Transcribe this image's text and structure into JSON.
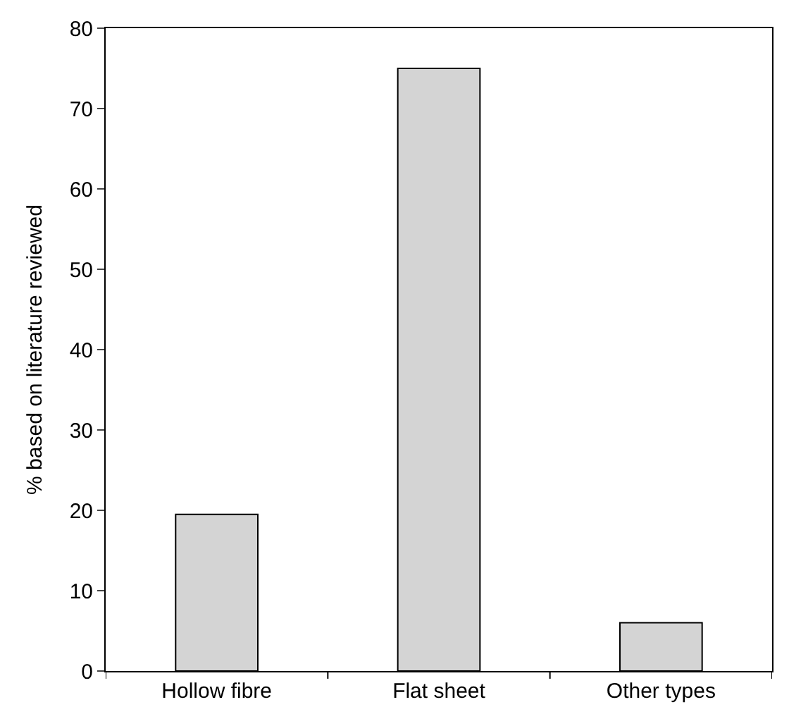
{
  "chart_data": {
    "type": "bar",
    "ylabel": "% based on literature reviewed",
    "categories": [
      "Hollow fibre",
      "Flat sheet",
      "Other types"
    ],
    "values": [
      19.5,
      75,
      6
    ],
    "color": "#d4d4d4",
    "ylim": [
      0,
      80
    ],
    "yticks": [
      0,
      10,
      20,
      30,
      40,
      50,
      60,
      70,
      80
    ]
  }
}
